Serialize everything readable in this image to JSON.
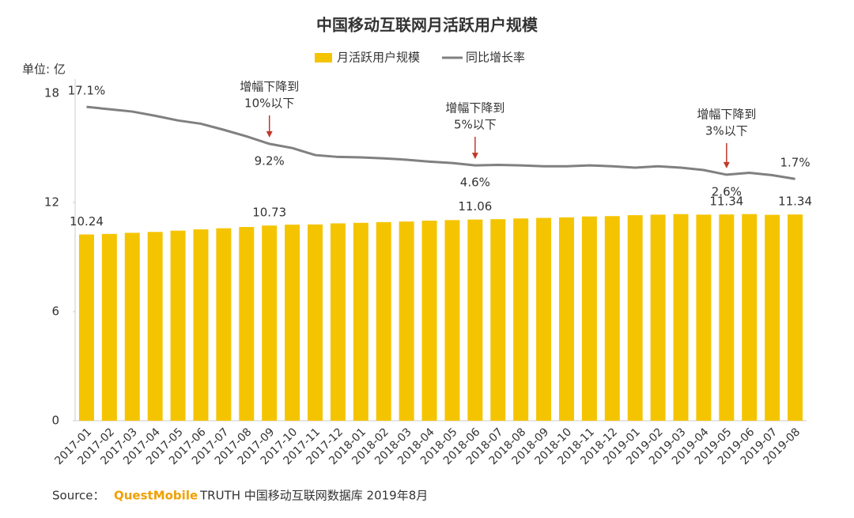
{
  "chart_data": {
    "type": "bar",
    "title": "中国移动互联网月活跃用户规模",
    "unit_label": "单位: 亿",
    "categories": [
      "2017-01",
      "2017-02",
      "2017-03",
      "2017-04",
      "2017-05",
      "2017-06",
      "2017-07",
      "2017-08",
      "2017-09",
      "2017-10",
      "2017-11",
      "2017-12",
      "2018-01",
      "2018-02",
      "2018-03",
      "2018-04",
      "2018-05",
      "2018-06",
      "2018-07",
      "2018-08",
      "2018-09",
      "2018-10",
      "2018-11",
      "2018-12",
      "2019-01",
      "2019-02",
      "2019-03",
      "2019-04",
      "2019-05",
      "2019-06",
      "2019-07",
      "2019-08"
    ],
    "series": [
      {
        "name": "月活跃用户规模",
        "type": "bar",
        "color": "#f5c400",
        "values": [
          10.24,
          10.27,
          10.33,
          10.38,
          10.45,
          10.52,
          10.58,
          10.65,
          10.73,
          10.78,
          10.79,
          10.85,
          10.88,
          10.92,
          10.95,
          11.0,
          11.03,
          11.06,
          11.08,
          11.12,
          11.15,
          11.18,
          11.23,
          11.25,
          11.3,
          11.33,
          11.36,
          11.33,
          11.34,
          11.36,
          11.32,
          11.34
        ],
        "value_labels": [
          "10.24",
          null,
          null,
          null,
          null,
          null,
          null,
          null,
          "10.73",
          null,
          null,
          null,
          null,
          null,
          null,
          null,
          null,
          "11.06",
          null,
          null,
          null,
          null,
          null,
          null,
          null,
          null,
          null,
          null,
          "11.34",
          null,
          null,
          "11.34"
        ]
      },
      {
        "name": "同比增长率",
        "type": "line",
        "axis": "y2",
        "color": "#808080",
        "values": [
          17.1,
          16.6,
          16.1,
          15.2,
          14.2,
          13.5,
          12.2,
          10.8,
          9.2,
          8.3,
          6.8,
          6.4,
          6.3,
          6.1,
          5.8,
          5.4,
          5.1,
          4.6,
          4.7,
          4.6,
          4.4,
          4.4,
          4.6,
          4.4,
          4.1,
          4.4,
          4.1,
          3.6,
          2.6,
          3.0,
          2.5,
          1.7
        ],
        "value_labels": [
          "17.1%",
          null,
          null,
          null,
          null,
          null,
          null,
          null,
          "9.2%",
          null,
          null,
          null,
          null,
          null,
          null,
          null,
          null,
          "4.6%",
          null,
          null,
          null,
          null,
          null,
          null,
          null,
          null,
          null,
          null,
          "2.6%",
          null,
          null,
          "1.7%"
        ]
      }
    ],
    "ylim": [
      0,
      18
    ],
    "yticks": [
      0,
      6,
      12,
      18
    ],
    "y2lim": [
      -50,
      20
    ],
    "grid": false,
    "legend": "top",
    "annotations": [
      {
        "lines": [
          "增幅下降到",
          "10%以下"
        ]
      },
      {
        "lines": [
          "增幅下降到",
          "5%以下"
        ]
      },
      {
        "lines": [
          "增幅下降到",
          "3%以下"
        ]
      }
    ],
    "source": [
      "Source：",
      "QuestMobile",
      "TRUTH 中国移动互联网数据库 2019年8月"
    ]
  }
}
